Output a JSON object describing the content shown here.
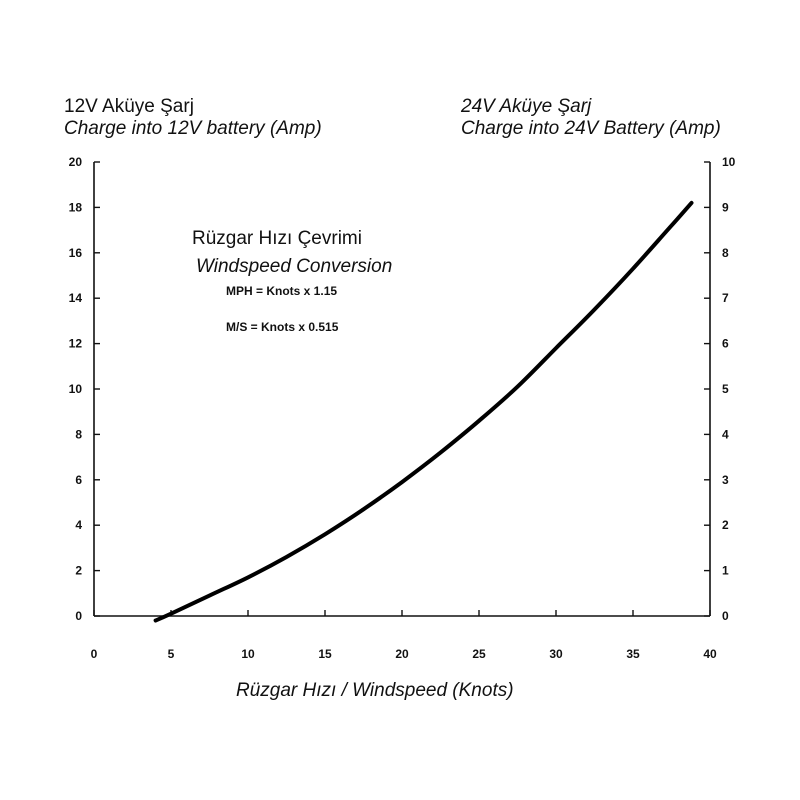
{
  "chart_data": {
    "type": "line",
    "left_header": {
      "line1": "12V Aküye Şarj",
      "line2": "Charge into 12V battery (Amp)"
    },
    "right_header": {
      "line1": "24V Aküye Şarj",
      "line2": "Charge into 24V Battery (Amp)"
    },
    "xlabel": "Rüzgar Hızı / Windspeed (Knots)",
    "xlim": [
      0,
      40
    ],
    "ylim_left": [
      0,
      20
    ],
    "ylim_right": [
      0,
      10
    ],
    "x_ticks": [
      0,
      5,
      10,
      15,
      20,
      25,
      30,
      35,
      40
    ],
    "y_ticks_left": [
      0,
      2,
      4,
      6,
      8,
      10,
      12,
      14,
      16,
      18,
      20
    ],
    "y_ticks_right": [
      0,
      1,
      2,
      3,
      4,
      5,
      6,
      7,
      8,
      9,
      10
    ],
    "annotation": {
      "title": "Rüzgar Hızı Çevrimi",
      "subtitle": "Windspeed Conversion",
      "line1": "MPH = Knots x 1.15",
      "line2": "M/S = Knots x 0.515"
    },
    "grid": false,
    "series": [
      {
        "x": [
          4,
          5,
          7.5,
          10,
          12.5,
          15,
          17.5,
          20,
          22.5,
          25,
          27.5,
          30,
          32.5,
          35,
          37.5,
          38.8
        ],
        "values": [
          -0.2,
          0.1,
          0.9,
          1.7,
          2.6,
          3.6,
          4.7,
          5.9,
          7.2,
          8.6,
          10.1,
          11.8,
          13.5,
          15.3,
          17.2,
          18.2
        ]
      }
    ]
  }
}
